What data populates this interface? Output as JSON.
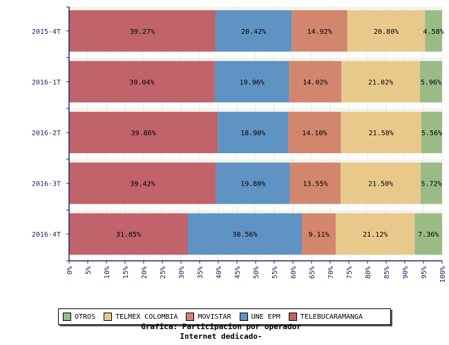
{
  "chart_data": {
    "type": "bar",
    "orientation": "horizontal",
    "stacked": true,
    "categories": [
      "2015-4T",
      "2016-1T",
      "2016-2T",
      "2016-3T",
      "2016-4T"
    ],
    "series": [
      {
        "name": "TELEBUCARAMANGA",
        "color": "#c0636a",
        "values": [
          39.27,
          39.04,
          39.86,
          39.42,
          31.85
        ],
        "labels": [
          "39.27%",
          "39.04%",
          "39.86%",
          "39.42%",
          "31.85%"
        ]
      },
      {
        "name": "UNE EPM",
        "color": "#5f93c3",
        "values": [
          20.42,
          19.96,
          18.9,
          19.8,
          30.56
        ],
        "labels": [
          "20.42%",
          "19.96%",
          "18.90%",
          "19.80%",
          "30.56%"
        ]
      },
      {
        "name": "MOVISTAR",
        "color": "#d1866d",
        "values": [
          14.92,
          14.02,
          14.1,
          13.55,
          9.11
        ],
        "labels": [
          "14.92%",
          "14.02%",
          "14.10%",
          "13.55%",
          "9.11%"
        ]
      },
      {
        "name": "TELMEX COLOMBIA",
        "color": "#e9c98b",
        "values": [
          20.8,
          21.02,
          21.58,
          21.5,
          21.12
        ],
        "labels": [
          "20.80%",
          "21.02%",
          "21.58%",
          "21.50%",
          "21.12%"
        ]
      },
      {
        "name": "OTROS",
        "color": "#9bbb86",
        "values": [
          4.58,
          5.96,
          5.56,
          5.72,
          7.36
        ],
        "labels": [
          "4.58%",
          "5.96%",
          "5.56%",
          "5.72%",
          "7.36%"
        ]
      }
    ],
    "xlim": [
      0,
      100
    ],
    "x_ticks": [
      "0%",
      "5%",
      "10%",
      "15%",
      "20%",
      "25%",
      "30%",
      "35%",
      "40%",
      "45%",
      "50%",
      "55%",
      "60%",
      "65%",
      "70%",
      "75%",
      "80%",
      "85%",
      "90%",
      "95%",
      "100%"
    ],
    "legend_order": [
      "OTROS",
      "TELMEX COLOMBIA",
      "MOVISTAR",
      "UNE EPM",
      "TELEBUCARAMANGA"
    ],
    "legend_position": "bottom",
    "grid": true,
    "title_line1": "Grafica: Participacion por operador",
    "title_line2": "Internet dedicado-"
  }
}
